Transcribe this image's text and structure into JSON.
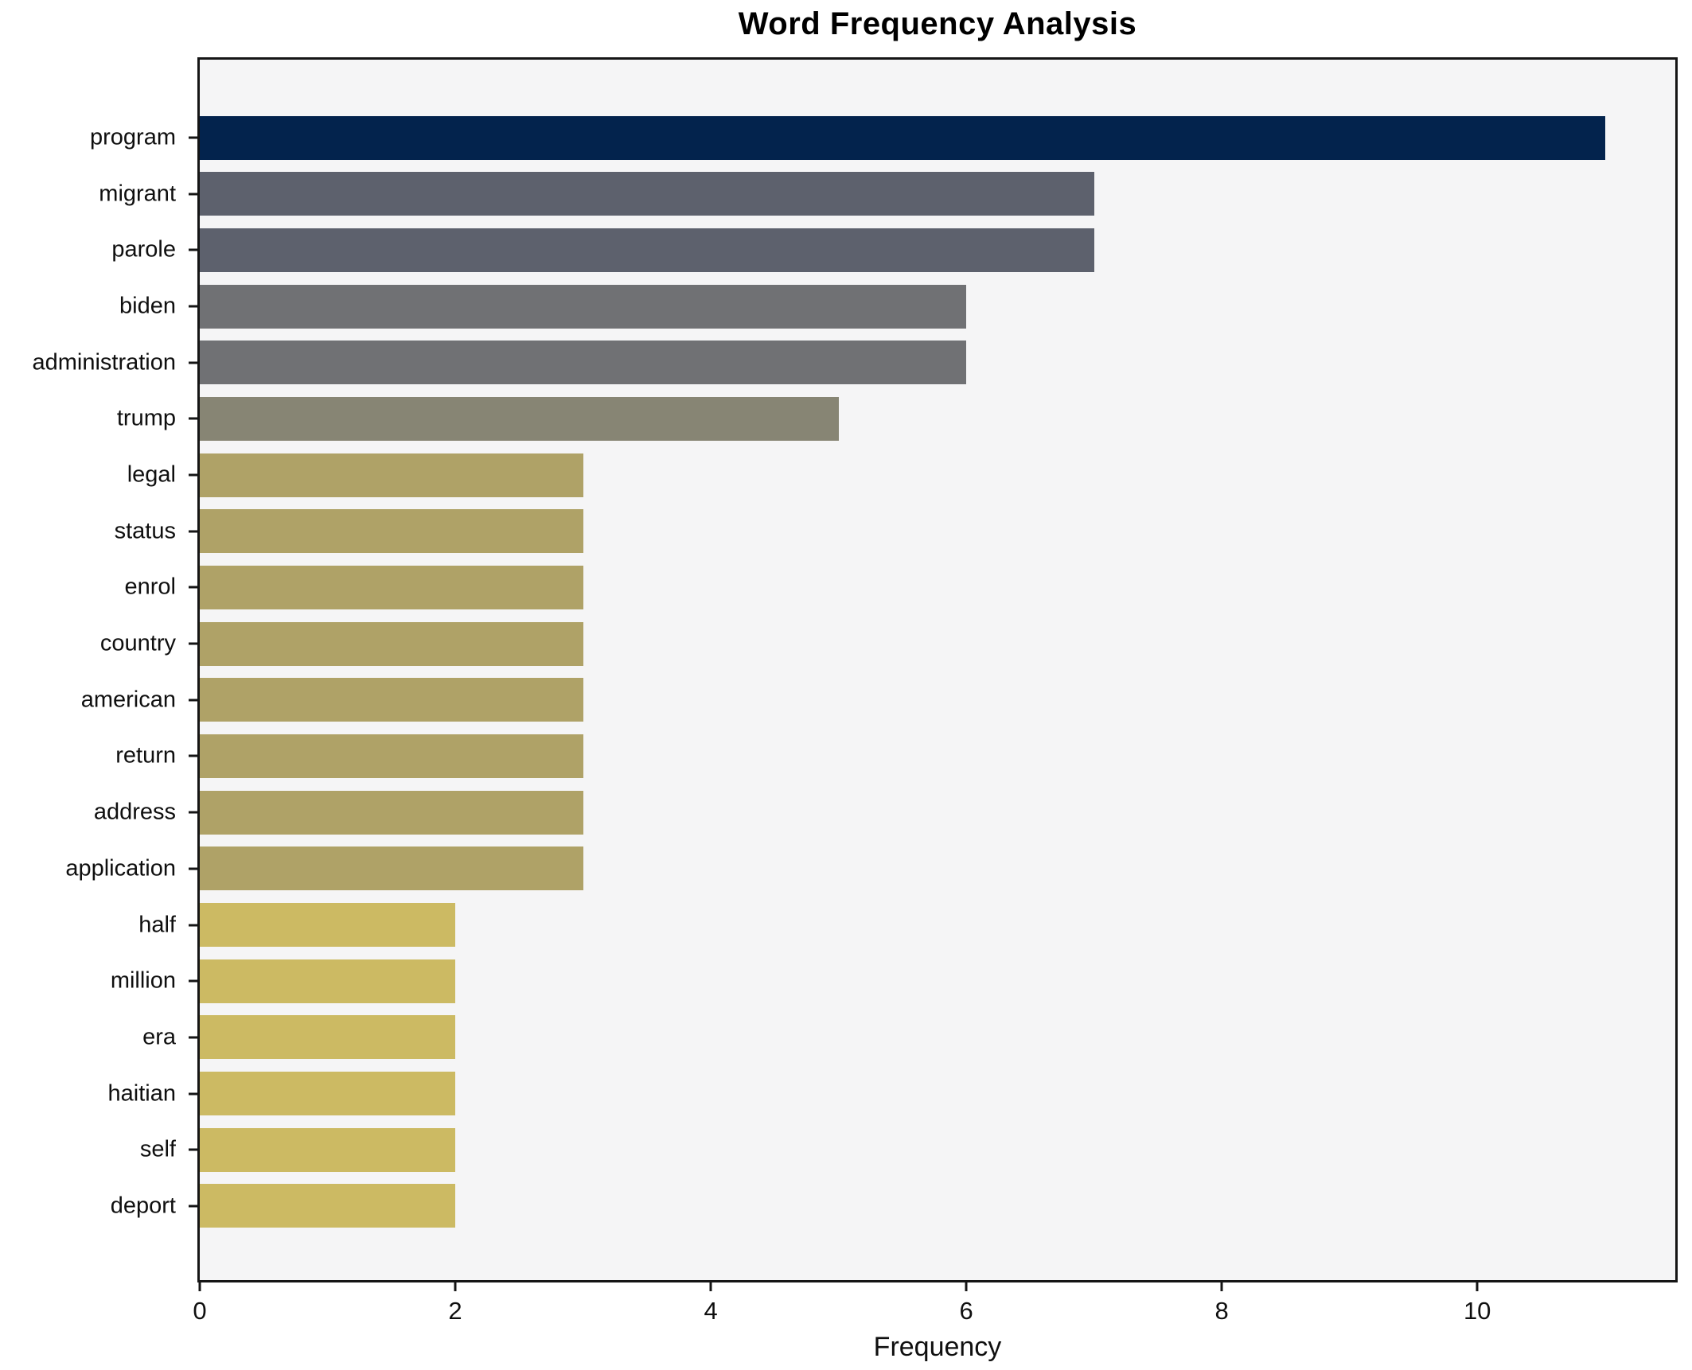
{
  "chart_data": {
    "type": "bar",
    "orientation": "horizontal",
    "title": "Word Frequency Analysis",
    "xlabel": "Frequency",
    "ylabel": "",
    "categories": [
      "program",
      "migrant",
      "parole",
      "biden",
      "administration",
      "trump",
      "legal",
      "status",
      "enrol",
      "country",
      "american",
      "return",
      "address",
      "application",
      "half",
      "million",
      "era",
      "haitian",
      "self",
      "deport"
    ],
    "values": [
      11,
      7,
      7,
      6,
      6,
      5,
      3,
      3,
      3,
      3,
      3,
      3,
      3,
      3,
      2,
      2,
      2,
      2,
      2,
      2
    ],
    "colors": [
      "#03234d",
      "#5d616d",
      "#5d616d",
      "#707174",
      "#707174",
      "#878574",
      "#afa267",
      "#afa267",
      "#afa267",
      "#afa267",
      "#afa267",
      "#afa267",
      "#afa267",
      "#afa267",
      "#ccba63",
      "#ccba63",
      "#ccba63",
      "#ccba63",
      "#ccba63",
      "#ccba63"
    ],
    "x_ticks": [
      0,
      2,
      4,
      6,
      8,
      10
    ],
    "xlim": [
      0,
      11.55
    ],
    "grid": false,
    "legend": null,
    "plot_background": "#f5f5f6",
    "spine_color": "#151515"
  }
}
